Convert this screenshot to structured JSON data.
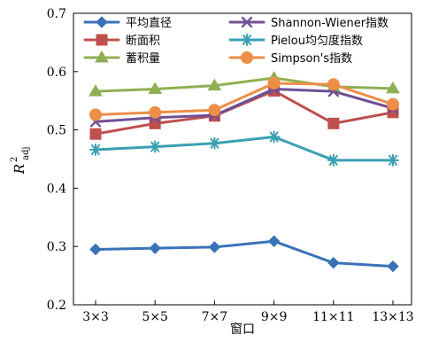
{
  "chart_data": {
    "type": "line",
    "categories": [
      "3×3",
      "5×5",
      "7×7",
      "9×9",
      "11×11",
      "13×13"
    ],
    "series": [
      {
        "name": "平均直径",
        "values": [
          0.295,
          0.297,
          0.299,
          0.309,
          0.272,
          0.266
        ],
        "color": "#3A72B8",
        "marker": "diamond"
      },
      {
        "name": "断面积",
        "values": [
          0.493,
          0.511,
          0.524,
          0.567,
          0.511,
          0.53
        ],
        "color": "#C0504D",
        "marker": "square"
      },
      {
        "name": "蓄积量",
        "values": [
          0.566,
          0.57,
          0.576,
          0.589,
          0.574,
          0.571
        ],
        "color": "#8FB052",
        "marker": "triangle"
      },
      {
        "name": "Shannon-Wiener指数",
        "values": [
          0.514,
          0.521,
          0.525,
          0.57,
          0.566,
          0.537
        ],
        "color": "#6F4F95",
        "marker": "x"
      },
      {
        "name": "Pielou均匀度指数",
        "values": [
          0.466,
          0.471,
          0.477,
          0.488,
          0.448,
          0.448
        ],
        "color": "#3B9FB3",
        "marker": "asterisk"
      },
      {
        "name": "Simpson's指数",
        "values": [
          0.526,
          0.53,
          0.534,
          0.58,
          0.578,
          0.544
        ],
        "color": "#ED8E47",
        "marker": "circle"
      }
    ],
    "title": "",
    "xlabel": "窗口",
    "ylabel": {
      "main": "R",
      "superscript": "2",
      "subscript": "adj"
    },
    "ylim": [
      0.2,
      0.7
    ],
    "yticks": [
      "0.2",
      "0.3",
      "0.4",
      "0.5",
      "0.6",
      "0.7"
    ],
    "grid": false,
    "legend": "top-inside, two columns"
  }
}
